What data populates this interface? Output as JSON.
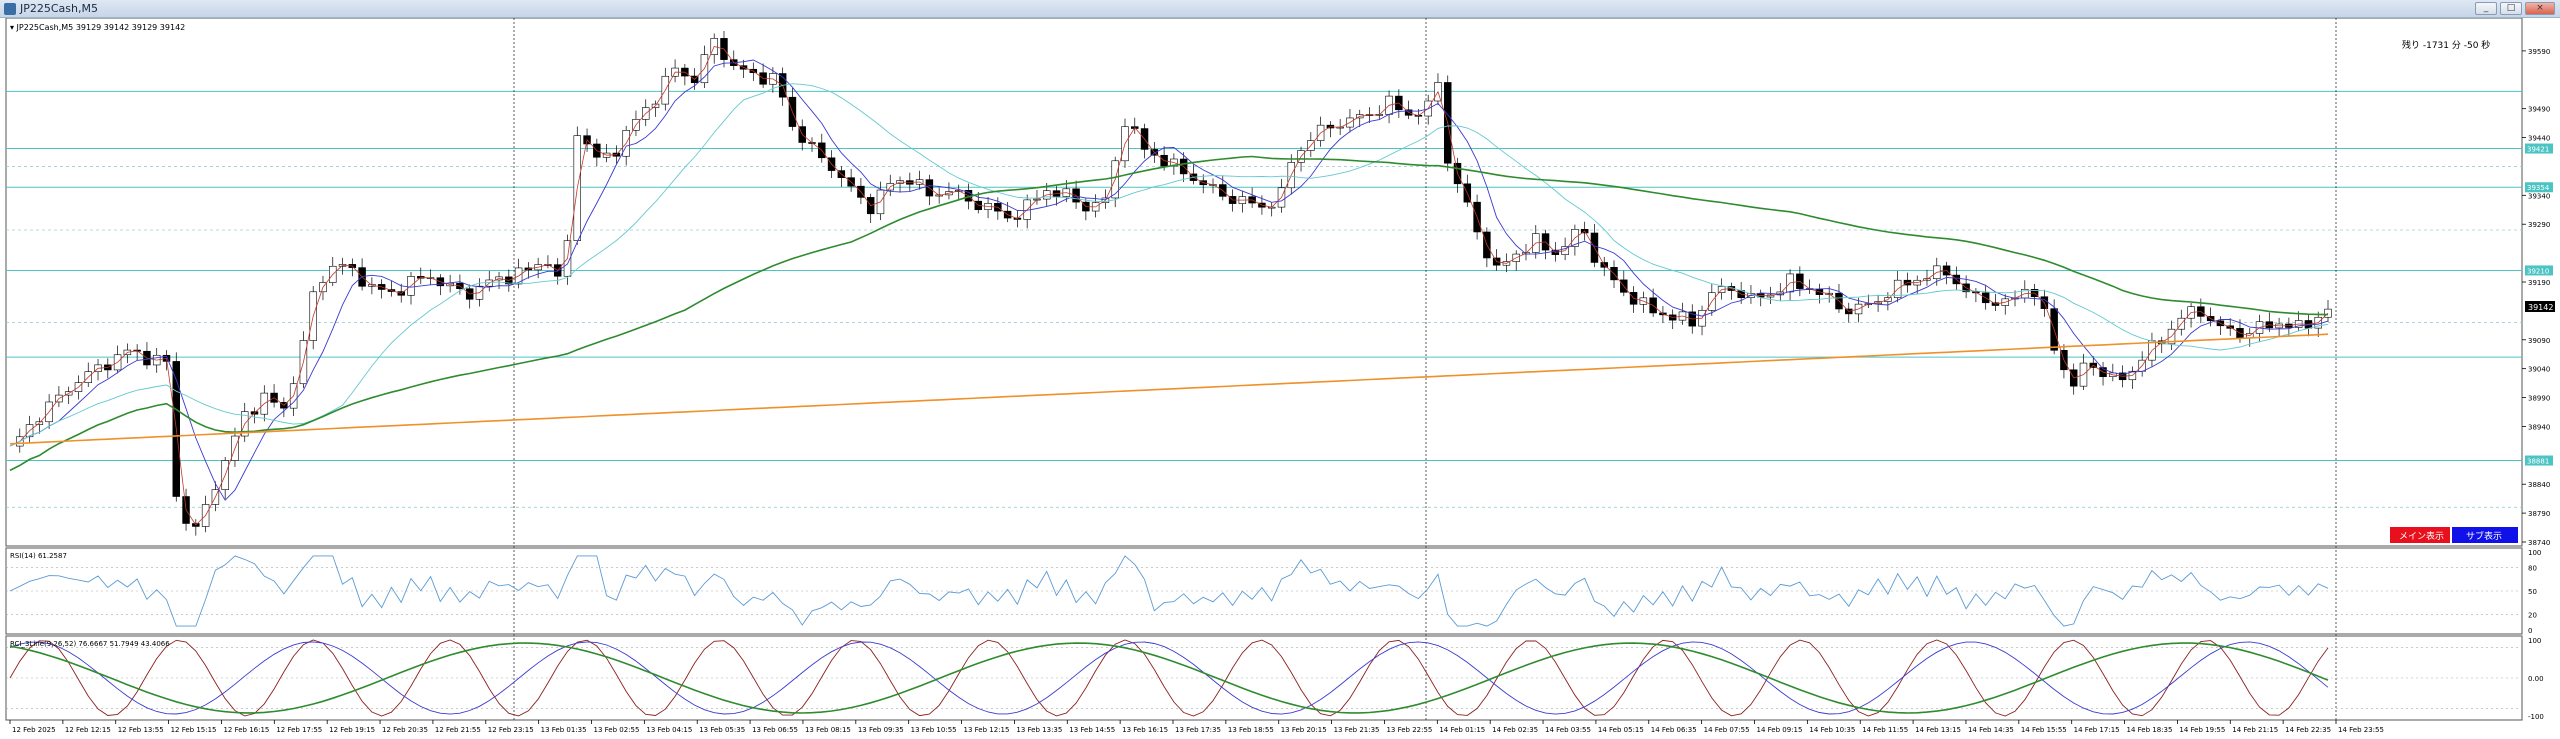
{
  "window": {
    "title": "JP225Cash,M5",
    "buttons": [
      "_",
      "□",
      "×"
    ]
  },
  "main_panel": {
    "symbol_info": "▾ JP225Cash,M5  39129 39142 39129 39142",
    "timer": "残り -1731 分 -50 秒",
    "current_price_tag": "39142",
    "price_ticks": [
      "39590",
      "39490",
      "39440",
      "39340",
      "39290",
      "39190",
      "39090",
      "39040",
      "38990",
      "38940",
      "38840",
      "38790",
      "38740"
    ],
    "level_tags": [
      "39421",
      "39354",
      "39210",
      "38881"
    ],
    "toggle_main": "メイン表示",
    "toggle_sub": "サブ表示"
  },
  "rsi_panel": {
    "label": "RSI(14) 61.2587",
    "ticks": [
      "100",
      "80",
      "50",
      "20",
      "0"
    ]
  },
  "stoch_panel": {
    "label": "RCI_3Line(9,26,52) 76.6667 51.7949 43.4066",
    "ticks": [
      "100",
      "0.00",
      "-100"
    ]
  },
  "time_axis": [
    "12 Feb 2025",
    "12 Feb 12:15",
    "12 Feb 13:55",
    "12 Feb 15:15",
    "12 Feb 16:15",
    "12 Feb 17:55",
    "12 Feb 19:15",
    "12 Feb 20:35",
    "12 Feb 21:55",
    "12 Feb 23:15",
    "13 Feb 01:35",
    "13 Feb 02:55",
    "13 Feb 04:15",
    "13 Feb 05:35",
    "13 Feb 06:55",
    "13 Feb 08:15",
    "13 Feb 09:35",
    "13 Feb 10:55",
    "13 Feb 12:15",
    "13 Feb 13:35",
    "13 Feb 14:55",
    "13 Feb 16:15",
    "13 Feb 17:35",
    "13 Feb 18:55",
    "13 Feb 20:15",
    "13 Feb 21:35",
    "13 Feb 22:55",
    "14 Feb 01:15",
    "14 Feb 02:35",
    "14 Feb 03:55",
    "14 Feb 05:15",
    "14 Feb 06:35",
    "14 Feb 07:55",
    "14 Feb 09:15",
    "14 Feb 10:35",
    "14 Feb 11:55",
    "14 Feb 13:15",
    "14 Feb 14:35",
    "14 Feb 15:55",
    "14 Feb 17:15",
    "14 Feb 18:35",
    "14 Feb 19:55",
    "14 Feb 21:15",
    "14 Feb 22:35",
    "14 Feb 23:55"
  ],
  "colors": {
    "ma_fast": "#c0392b",
    "ma_mid": "#3a3ad0",
    "ma_slow": "#63c9cf",
    "ma_long": "#2e8b2e",
    "ma_longest": "#f0902a",
    "rsi": "#5b9bd5",
    "rci_short": "#8b2020",
    "rci_mid": "#3a3ad0",
    "rci_long": "#2e8b2e",
    "level_line": "#4cc4c4",
    "toggle_main_bg": "#e8101c",
    "toggle_sub_bg": "#1010e8"
  },
  "chart_data": {
    "type": "candlestick",
    "x_range": [
      "12 Feb 2025",
      "14 Feb 23:55"
    ],
    "ylim": [
      38740,
      39640
    ],
    "price_path": [
      [
        0,
        38900
      ],
      [
        3,
        38960
      ],
      [
        7,
        39020
      ],
      [
        10,
        39050
      ],
      [
        12,
        39070
      ],
      [
        14,
        39060
      ],
      [
        16,
        39050
      ],
      [
        17,
        38820
      ],
      [
        18,
        38780
      ],
      [
        19,
        38760
      ],
      [
        20,
        38800
      ],
      [
        22,
        38880
      ],
      [
        24,
        38960
      ],
      [
        26,
        38990
      ],
      [
        28,
        38970
      ],
      [
        30,
        39080
      ],
      [
        31,
        39170
      ],
      [
        33,
        39220
      ],
      [
        35,
        39210
      ],
      [
        37,
        39180
      ],
      [
        39,
        39170
      ],
      [
        41,
        39190
      ],
      [
        43,
        39200
      ],
      [
        45,
        39180
      ],
      [
        47,
        39170
      ],
      [
        49,
        39190
      ],
      [
        51,
        39200
      ],
      [
        53,
        39210
      ],
      [
        55,
        39230
      ],
      [
        56,
        39190
      ],
      [
        57,
        39260
      ],
      [
        58,
        39450
      ],
      [
        59,
        39430
      ],
      [
        60,
        39400
      ],
      [
        62,
        39420
      ],
      [
        64,
        39470
      ],
      [
        66,
        39510
      ],
      [
        68,
        39560
      ],
      [
        70,
        39540
      ],
      [
        72,
        39610
      ],
      [
        74,
        39560
      ],
      [
        76,
        39550
      ],
      [
        78,
        39540
      ],
      [
        79,
        39510
      ],
      [
        80,
        39460
      ],
      [
        82,
        39420
      ],
      [
        84,
        39390
      ],
      [
        86,
        39350
      ],
      [
        88,
        39320
      ],
      [
        90,
        39360
      ],
      [
        92,
        39370
      ],
      [
        94,
        39340
      ],
      [
        96,
        39350
      ],
      [
        98,
        39330
      ],
      [
        100,
        39320
      ],
      [
        102,
        39300
      ],
      [
        104,
        39320
      ],
      [
        106,
        39350
      ],
      [
        108,
        39340
      ],
      [
        110,
        39320
      ],
      [
        112,
        39330
      ],
      [
        114,
        39470
      ],
      [
        116,
        39420
      ],
      [
        118,
        39400
      ],
      [
        120,
        39380
      ],
      [
        122,
        39360
      ],
      [
        124,
        39340
      ],
      [
        126,
        39330
      ],
      [
        128,
        39320
      ],
      [
        130,
        39340
      ],
      [
        131,
        39400
      ],
      [
        133,
        39440
      ],
      [
        135,
        39460
      ],
      [
        137,
        39470
      ],
      [
        139,
        39480
      ],
      [
        141,
        39500
      ],
      [
        143,
        39480
      ],
      [
        145,
        39490
      ],
      [
        146,
        39540
      ],
      [
        147,
        39400
      ],
      [
        148,
        39360
      ],
      [
        149,
        39320
      ],
      [
        150,
        39280
      ],
      [
        151,
        39240
      ],
      [
        152,
        39210
      ],
      [
        154,
        39240
      ],
      [
        156,
        39260
      ],
      [
        158,
        39240
      ],
      [
        160,
        39270
      ],
      [
        161,
        39280
      ],
      [
        162,
        39230
      ],
      [
        164,
        39190
      ],
      [
        166,
        39160
      ],
      [
        168,
        39140
      ],
      [
        170,
        39130
      ],
      [
        172,
        39120
      ],
      [
        174,
        39170
      ],
      [
        176,
        39180
      ],
      [
        178,
        39160
      ],
      [
        180,
        39170
      ],
      [
        182,
        39190
      ],
      [
        184,
        39180
      ],
      [
        186,
        39160
      ],
      [
        188,
        39140
      ],
      [
        190,
        39150
      ],
      [
        192,
        39170
      ],
      [
        194,
        39190
      ],
      [
        196,
        39200
      ],
      [
        198,
        39210
      ],
      [
        200,
        39170
      ],
      [
        202,
        39160
      ],
      [
        204,
        39150
      ],
      [
        206,
        39180
      ],
      [
        207,
        39170
      ],
      [
        208,
        39130
      ],
      [
        209,
        39080
      ],
      [
        210,
        39040
      ],
      [
        211,
        39010
      ],
      [
        212,
        39040
      ],
      [
        213,
        39050
      ],
      [
        214,
        39030
      ],
      [
        216,
        39020
      ],
      [
        218,
        39060
      ],
      [
        220,
        39090
      ],
      [
        222,
        39130
      ],
      [
        224,
        39140
      ],
      [
        226,
        39110
      ],
      [
        228,
        39100
      ],
      [
        230,
        39110
      ],
      [
        232,
        39120
      ],
      [
        234,
        39110
      ],
      [
        236,
        39130
      ],
      [
        237,
        39142
      ]
    ]
  }
}
